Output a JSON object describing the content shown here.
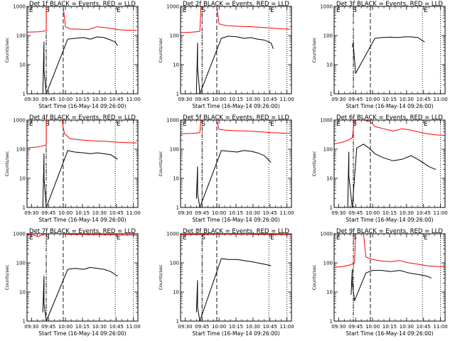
{
  "figure": {
    "ylabel": "Counts/sec",
    "xlabel": "Start Time (16-May-14 09:26:00)",
    "xticks": [
      "09:30",
      "09:45",
      "10:00",
      "10:15",
      "10:30",
      "10:45",
      "11:00"
    ],
    "yticks": [
      "1",
      "10",
      "100",
      "1000"
    ],
    "marker_labels": {
      "start": "S",
      "end": "E"
    }
  },
  "chart_data": [
    {
      "type": "line",
      "title": "Det 1f BLACK = Events, RED = LLD",
      "xlabel": "Start Time (16-May-14 09:26:00)",
      "ylabel": "Counts/sec",
      "xlim": [
        "09:26",
        "11:04"
      ],
      "ylim": [
        1,
        1000
      ],
      "yscale": "log",
      "markers": {
        "dashdot": "09:43",
        "dashed": "09:58",
        "dotted": [
          "09:43",
          "10:44",
          "11:00"
        ]
      },
      "series": [
        {
          "color": "#ff0000",
          "x": [
            "09:26",
            "09:36",
            "09:40",
            "09:43",
            "09:43",
            "09:58",
            "10:00",
            "10:04",
            "10:12",
            "10:20",
            "10:28",
            "10:34",
            "10:40",
            "10:46",
            "10:56",
            "11:03"
          ],
          "y": [
            130,
            135,
            140,
            145,
            1000,
            1000,
            200,
            170,
            165,
            160,
            200,
            190,
            175,
            160,
            150,
            150
          ]
        },
        {
          "color": "#000000",
          "x": [
            "09:40",
            "09:41",
            "09:41",
            "09:43",
            "10:02",
            "10:08",
            "10:16",
            "10:22",
            "10:28",
            "10:34",
            "10:40",
            "10:44",
            "10:46"
          ],
          "y": [
            1,
            60,
            6,
            1,
            75,
            80,
            85,
            75,
            90,
            85,
            70,
            60,
            45
          ]
        }
      ]
    },
    {
      "type": "line",
      "title": "Det 2f BLACK = Events, RED = LLD",
      "xlabel": "Start Time (16-May-14 09:26:00)",
      "ylabel": "Counts/sec",
      "xlim": [
        "09:26",
        "11:04"
      ],
      "ylim": [
        1,
        1000
      ],
      "yscale": "log",
      "markers": {
        "dashdot": "09:45",
        "dashed": "09:58",
        "dotted": [
          "09:45",
          "10:44",
          "11:00"
        ]
      },
      "series": [
        {
          "color": "#ff0000",
          "x": [
            "09:26",
            "09:36",
            "09:40",
            "09:43",
            "09:44",
            "09:58",
            "10:00",
            "10:06",
            "10:14",
            "10:22",
            "10:30",
            "10:38",
            "10:46",
            "10:56",
            "11:03"
          ],
          "y": [
            125,
            130,
            135,
            140,
            1000,
            1000,
            250,
            220,
            210,
            205,
            200,
            190,
            180,
            170,
            165
          ]
        },
        {
          "color": "#000000",
          "x": [
            "09:40",
            "09:41",
            "09:41",
            "09:43",
            "10:02",
            "10:08",
            "10:16",
            "10:22",
            "10:28",
            "10:34",
            "10:40",
            "10:46",
            "10:48"
          ],
          "y": [
            1,
            55,
            8,
            1,
            80,
            95,
            90,
            80,
            85,
            75,
            70,
            55,
            35
          ]
        }
      ]
    },
    {
      "type": "line",
      "title": "Det 3f BLACK = Events, RED = LLD",
      "xlabel": "Start Time (16-May-14 09:26:00)",
      "ylabel": "Counts/sec",
      "xlim": [
        "09:26",
        "11:04"
      ],
      "ylim": [
        1,
        1000
      ],
      "yscale": "log",
      "markers": {
        "dashdot": "09:43",
        "dashed": "09:58",
        "dotted": [
          "09:43",
          "10:44",
          "11:00"
        ]
      },
      "series": [
        {
          "color": "#000000",
          "x": [
            "09:42",
            "09:43",
            "09:43",
            "09:45",
            "10:02",
            "10:08",
            "10:16",
            "10:22",
            "10:28",
            "10:34",
            "10:40",
            "10:46"
          ],
          "y": [
            40,
            60,
            45,
            5,
            80,
            85,
            88,
            85,
            90,
            90,
            85,
            60
          ]
        }
      ]
    },
    {
      "type": "line",
      "title": "Det 4f BLACK = Events, RED = LLD",
      "xlabel": "Start Time (16-May-14 09:26:00)",
      "ylabel": "Counts/sec",
      "xlim": [
        "09:26",
        "11:04"
      ],
      "ylim": [
        1,
        1000
      ],
      "yscale": "log",
      "markers": {
        "dashdot": "09:43",
        "dashed": "09:58",
        "dotted": [
          "09:43",
          "10:44",
          "11:00"
        ]
      },
      "series": [
        {
          "color": "#ff0000",
          "x": [
            "09:26",
            "09:36",
            "09:40",
            "09:43",
            "09:43",
            "09:57",
            "09:59",
            "10:04",
            "10:12",
            "10:20",
            "10:28",
            "10:36",
            "10:44",
            "10:52",
            "11:03"
          ],
          "y": [
            110,
            120,
            130,
            140,
            1000,
            1000,
            350,
            230,
            210,
            200,
            190,
            185,
            175,
            170,
            165
          ]
        },
        {
          "color": "#000000",
          "x": [
            "09:40",
            "09:41",
            "09:41",
            "09:43",
            "10:02",
            "10:08",
            "10:16",
            "10:22",
            "10:28",
            "10:34",
            "10:40",
            "10:46"
          ],
          "y": [
            1,
            70,
            10,
            1,
            90,
            80,
            75,
            70,
            75,
            70,
            65,
            45
          ]
        }
      ]
    },
    {
      "type": "line",
      "title": "Det 5f BLACK = Events, RED = LLD",
      "xlabel": "Start Time (16-May-14 09:26:00)",
      "ylabel": "Counts/sec",
      "xlim": [
        "09:26",
        "11:04"
      ],
      "ylim": [
        1,
        1000
      ],
      "yscale": "log",
      "markers": {
        "dashdot": "09:45",
        "dashed": "09:58",
        "dotted": [
          "09:45",
          "10:44",
          "11:00"
        ]
      },
      "series": [
        {
          "color": "#ff0000",
          "x": [
            "09:26",
            "09:36",
            "09:40",
            "09:43",
            "09:44",
            "09:58",
            "10:00",
            "10:06",
            "10:14",
            "10:22",
            "10:30",
            "10:38",
            "10:46",
            "10:56",
            "11:03"
          ],
          "y": [
            340,
            350,
            360,
            370,
            1000,
            1000,
            480,
            450,
            430,
            420,
            410,
            390,
            370,
            355,
            350
          ]
        },
        {
          "color": "#000000",
          "x": [
            "09:40",
            "09:41",
            "09:41",
            "09:43",
            "10:02",
            "10:08",
            "10:16",
            "10:22",
            "10:28",
            "10:34",
            "10:40",
            "10:46"
          ],
          "y": [
            2,
            25,
            3,
            1,
            90,
            85,
            80,
            90,
            85,
            75,
            60,
            35
          ]
        }
      ]
    },
    {
      "type": "line",
      "title": "Det 6f BLACK = Events, RED = LLD",
      "xlabel": "Start Time (16-May-14 09:26:00)",
      "ylabel": "Counts/sec",
      "xlim": [
        "09:26",
        "11:04"
      ],
      "ylim": [
        1,
        1000
      ],
      "yscale": "log",
      "markers": {
        "dashdot": "09:43",
        "dashed": "09:58",
        "dotted": [
          "09:43",
          "10:44",
          "11:00"
        ]
      },
      "series": [
        {
          "color": "#ff0000",
          "x": [
            "09:26",
            "09:32",
            "09:38",
            "09:42",
            "09:44",
            "09:48",
            "09:52",
            "09:58",
            "10:02",
            "10:10",
            "10:18",
            "10:26",
            "10:34",
            "10:42",
            "10:50",
            "10:56",
            "11:03"
          ],
          "y": [
            150,
            170,
            200,
            250,
            1000,
            1000,
            1000,
            900,
            600,
            500,
            420,
            500,
            450,
            380,
            330,
            310,
            300
          ]
        },
        {
          "color": "#000000",
          "x": [
            "09:38",
            "09:39",
            "09:39",
            "09:42",
            "09:46",
            "09:52",
            "09:58",
            "10:02",
            "10:10",
            "10:18",
            "10:26",
            "10:34",
            "10:42",
            "10:50",
            "10:56"
          ],
          "y": [
            1,
            80,
            12,
            1,
            110,
            150,
            100,
            70,
            50,
            40,
            45,
            60,
            40,
            25,
            20
          ]
        }
      ]
    },
    {
      "type": "line",
      "title": "Det 7f BLACK = Events, RED = LLD",
      "xlabel": "Start Time (16-May-14 09:26:00)",
      "ylabel": "Counts/sec",
      "xlim": [
        "09:26",
        "11:04"
      ],
      "ylim": [
        1,
        1000
      ],
      "yscale": "log",
      "markers": {
        "dashdot": "09:43",
        "dashed": "09:58",
        "dotted": [
          "09:43",
          "10:44",
          "11:00"
        ]
      },
      "series": [
        {
          "color": "#ff0000",
          "x": [
            "09:26",
            "09:32",
            "09:36",
            "09:40",
            "09:44",
            "09:56",
            "10:02",
            "10:14",
            "10:26",
            "10:38",
            "10:50",
            "11:03"
          ],
          "y": [
            950,
            900,
            800,
            950,
            1000,
            1000,
            950,
            940,
            930,
            920,
            910,
            900
          ]
        },
        {
          "color": "#000000",
          "x": [
            "09:40",
            "09:41",
            "09:41",
            "09:43",
            "10:02",
            "10:08",
            "10:16",
            "10:22",
            "10:28",
            "10:34",
            "10:40",
            "10:46"
          ],
          "y": [
            2,
            35,
            4,
            1,
            60,
            65,
            60,
            70,
            65,
            60,
            50,
            35
          ]
        }
      ]
    },
    {
      "type": "line",
      "title": "Det 8f BLACK = Events, RED = LLD",
      "xlabel": "Start Time (16-May-14 09:26:00)",
      "ylabel": "Counts/sec",
      "xlim": [
        "09:26",
        "11:04"
      ],
      "ylim": [
        1,
        1000
      ],
      "yscale": "log",
      "markers": {
        "dashdot": "09:45",
        "dashed": "09:58",
        "dotted": [
          "09:45",
          "10:44",
          "11:00"
        ]
      },
      "series": [
        {
          "color": "#ff0000",
          "x": [
            "09:26",
            "09:34",
            "09:42",
            "09:50",
            "09:58",
            "10:06",
            "10:14",
            "10:22",
            "10:30",
            "10:38",
            "10:46",
            "10:54",
            "11:03"
          ],
          "y": [
            920,
            930,
            940,
            950,
            960,
            960,
            960,
            955,
            950,
            945,
            940,
            930,
            920
          ]
        },
        {
          "color": "#000000",
          "x": [
            "09:40",
            "09:41",
            "09:41",
            "09:43",
            "10:02",
            "10:08",
            "10:16",
            "10:22",
            "10:28",
            "10:34",
            "10:40",
            "10:46"
          ],
          "y": [
            2,
            25,
            3,
            1,
            140,
            130,
            130,
            120,
            110,
            100,
            90,
            80
          ]
        }
      ]
    },
    {
      "type": "line",
      "title": "Det 9f BLACK = Events, RED = LLD",
      "xlabel": "Start Time (16-May-14 09:26:00)",
      "ylabel": "Counts/sec",
      "xlim": [
        "09:26",
        "11:04"
      ],
      "ylim": [
        1,
        1000
      ],
      "yscale": "log",
      "markers": {
        "dashdot": "09:43",
        "dashed": "09:58",
        "dotted": [
          "09:43",
          "10:44",
          "11:00"
        ]
      },
      "series": [
        {
          "color": "#ff0000",
          "x": [
            "09:26",
            "09:34",
            "09:40",
            "09:44",
            "09:45",
            "09:52",
            "09:54",
            "10:00",
            "10:08",
            "10:16",
            "10:24",
            "10:32",
            "10:40",
            "10:48",
            "10:56",
            "11:03"
          ],
          "y": [
            70,
            75,
            85,
            100,
            1000,
            1000,
            160,
            130,
            115,
            110,
            120,
            100,
            90,
            80,
            75,
            75
          ]
        },
        {
          "color": "#000000",
          "x": [
            "09:41",
            "09:42",
            "09:42",
            "09:44",
            "09:54",
            "10:00",
            "10:08",
            "10:16",
            "10:24",
            "10:32",
            "10:40",
            "10:48",
            "10:52"
          ],
          "y": [
            8,
            60,
            20,
            5,
            45,
            55,
            55,
            50,
            55,
            45,
            40,
            35,
            30
          ]
        }
      ]
    }
  ]
}
